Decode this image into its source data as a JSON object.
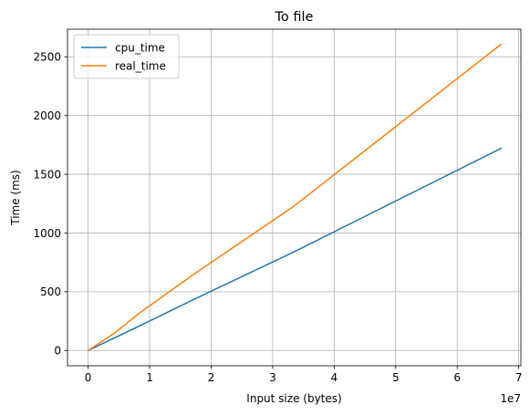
{
  "chart_data": {
    "type": "line",
    "title": "To file",
    "xlabel": "Input size (bytes)",
    "ylabel": "Time (ms)",
    "x_offset_label": "1e7",
    "xlim": [
      -3350000,
      70350000
    ],
    "ylim": [
      -130,
      2735
    ],
    "xticks": [
      0,
      10000000,
      20000000,
      30000000,
      40000000,
      50000000,
      60000000,
      70000000
    ],
    "xtick_labels": [
      "0",
      "1",
      "2",
      "3",
      "4",
      "5",
      "6",
      "7"
    ],
    "yticks": [
      0,
      500,
      1000,
      1500,
      2000,
      2500
    ],
    "ytick_labels": [
      "0",
      "500",
      "1000",
      "1500",
      "2000",
      "2500"
    ],
    "grid": true,
    "legend_position": "top-left",
    "series": [
      {
        "name": "cpu_time",
        "color": "#1f77b4",
        "x": [
          0,
          4200000,
          8400000,
          16800000,
          33500000,
          67100000
        ],
        "y": [
          0,
          105,
          210,
          425,
          840,
          1720
        ]
      },
      {
        "name": "real_time",
        "color": "#ff7f0e",
        "x": [
          0,
          4200000,
          8400000,
          16800000,
          33500000,
          67100000
        ],
        "y": [
          0,
          145,
          320,
          635,
          1230,
          2605
        ]
      }
    ]
  }
}
